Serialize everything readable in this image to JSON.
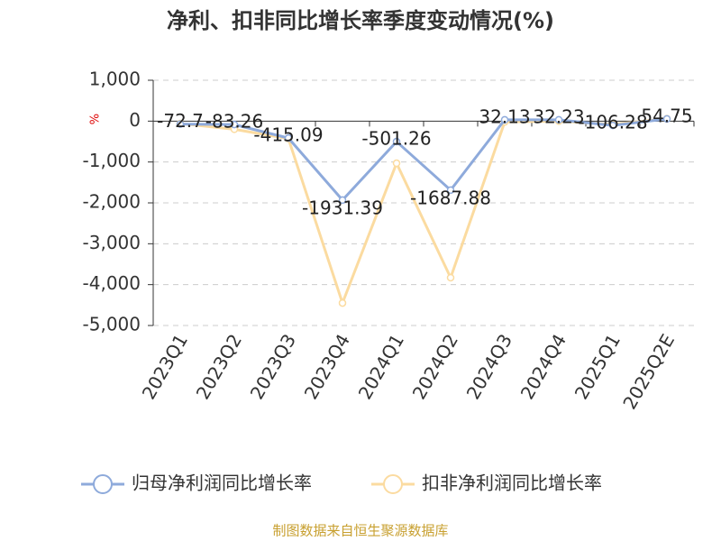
{
  "chart_data": {
    "type": "line",
    "title": "净利、扣非同比增长率季度变动情况(%)",
    "y_unit": "%",
    "categories": [
      "2023Q1",
      "2023Q2",
      "2023Q3",
      "2023Q4",
      "2024Q1",
      "2024Q2",
      "2024Q3",
      "2024Q4",
      "2025Q1",
      "2025Q2E"
    ],
    "series": [
      {
        "name": "归母净利润同比增长率",
        "color": "#8eaadb",
        "values": [
          -72.7,
          -83.26,
          -415.09,
          -1931.39,
          -501.26,
          -1687.88,
          32.13,
          32.23,
          -106.28,
          54.75
        ],
        "value_labels": [
          "-72.7",
          "-83.26",
          "-415.09",
          "-1931.39",
          "-501.26",
          "-1687.88",
          "32.13",
          "32.23",
          "-106.28",
          "54.75"
        ]
      },
      {
        "name": "扣非净利润同比增长率",
        "color": "#fbdba0",
        "values": [
          -60,
          -200,
          -430,
          -4450,
          -1030,
          -3830,
          -20,
          0,
          -80,
          60
        ]
      }
    ],
    "ylim": [
      -5000,
      1000
    ],
    "yticks": [
      {
        "value": 1000,
        "label": "1,000"
      },
      0,
      {
        "value": -1000,
        "label": "-1,000"
      },
      {
        "value": -2000,
        "label": "-2,000"
      },
      {
        "value": -3000,
        "label": "-3,000"
      },
      {
        "value": -4000,
        "label": "-4,000"
      },
      {
        "value": -5000,
        "label": "-5,000"
      }
    ],
    "grid": true,
    "source": "制图数据来自恒生聚源数据库"
  }
}
